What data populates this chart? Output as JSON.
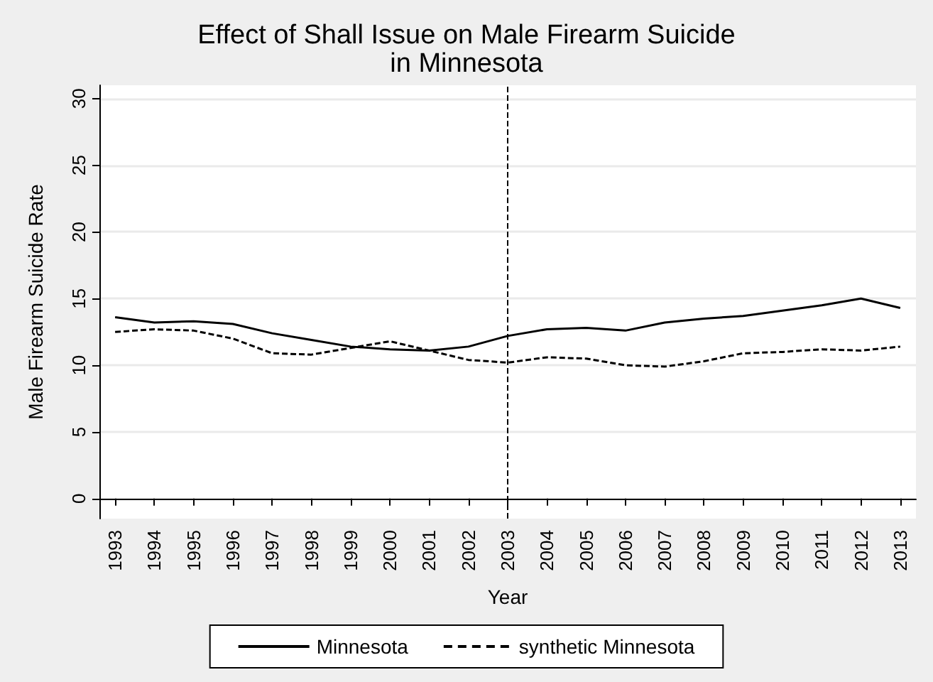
{
  "chart_data": {
    "type": "line",
    "title": "Effect of Shall Issue on Male Firearm Suicide\nin Minnesota",
    "xlabel": "Year",
    "ylabel": "Male Firearm Suicide Rate",
    "x": [
      1993,
      1994,
      1995,
      1996,
      1997,
      1998,
      1999,
      2000,
      2001,
      2002,
      2003,
      2004,
      2005,
      2006,
      2007,
      2008,
      2009,
      2010,
      2011,
      2012,
      2013
    ],
    "series": [
      {
        "name": "Minnesota",
        "color": "#000000",
        "line_style": "solid",
        "values": [
          13.6,
          13.2,
          13.3,
          13.1,
          12.4,
          11.9,
          11.4,
          11.2,
          11.1,
          11.4,
          12.2,
          12.7,
          12.8,
          12.6,
          13.2,
          13.5,
          13.7,
          14.1,
          14.5,
          15.0,
          14.3
        ]
      },
      {
        "name": "synthetic Minnesota",
        "color": "#000000",
        "line_style": "dashed",
        "values": [
          12.5,
          12.7,
          12.6,
          12.0,
          10.9,
          10.8,
          11.3,
          11.8,
          11.1,
          10.4,
          10.2,
          10.6,
          10.5,
          10.0,
          9.9,
          10.3,
          10.9,
          11.0,
          11.2,
          11.1,
          11.4
        ]
      }
    ],
    "xlim": [
      1992.6,
      2013.4
    ],
    "xticks": [
      1993,
      1994,
      1995,
      1996,
      1997,
      1998,
      1999,
      2000,
      2001,
      2002,
      2003,
      2004,
      2005,
      2006,
      2007,
      2008,
      2009,
      2010,
      2011,
      2012,
      2013
    ],
    "ylim": [
      -1.5,
      31
    ],
    "yticks": [
      0,
      5,
      10,
      15,
      20,
      25,
      30
    ],
    "ref_lines": [
      {
        "axis": "x",
        "value": 2003,
        "color": "#000000",
        "line_style": "dashed"
      }
    ],
    "grid": "y",
    "legend": "bottom",
    "marker": "none"
  }
}
